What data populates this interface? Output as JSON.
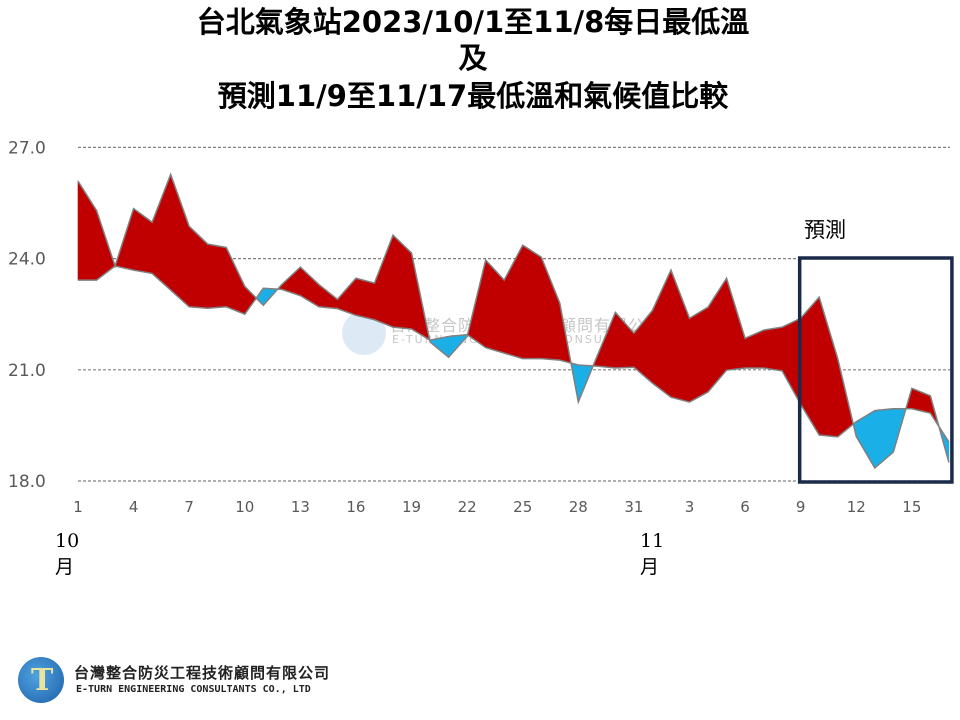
{
  "title": {
    "line1": "台北氣象站2023/10/1至11/8每日最低溫",
    "line2": "及",
    "line3": "預測11/9至11/17最低溫和氣候值比較"
  },
  "forecast_label": "預測",
  "company": {
    "name_zh": "台灣整合防災工程技術顧問有限公司",
    "name_en": "E-TURN ENGINEERING CONSULTANTS CO., LTD"
  },
  "colors": {
    "above_normal": "#c00000",
    "below_normal": "#1aafe6",
    "outline": "#808080",
    "forecast_box": "#1b2a4a"
  },
  "chart_data": {
    "type": "area",
    "title": "台北氣象站2023/10/1至11/8每日最低溫 及 預測11/9至11/17最低溫和氣候值比較",
    "xlabel": "",
    "ylabel": "",
    "ylim": [
      18.0,
      27.0
    ],
    "yticks": [
      "18.0",
      "21.0",
      "24.0",
      "27.0"
    ],
    "grid": true,
    "x": [
      "10/1",
      "10/2",
      "10/3",
      "10/4",
      "10/5",
      "10/6",
      "10/7",
      "10/8",
      "10/9",
      "10/10",
      "10/11",
      "10/12",
      "10/13",
      "10/14",
      "10/15",
      "10/16",
      "10/17",
      "10/18",
      "10/19",
      "10/20",
      "10/21",
      "10/22",
      "10/23",
      "10/24",
      "10/25",
      "10/26",
      "10/27",
      "10/28",
      "10/29",
      "10/30",
      "10/31",
      "11/1",
      "11/2",
      "11/3",
      "11/4",
      "11/5",
      "11/6",
      "11/7",
      "11/8",
      "11/9",
      "11/10",
      "11/11",
      "11/12",
      "11/13",
      "11/14",
      "11/15",
      "11/16",
      "11/17"
    ],
    "xtick_labels": [
      "1",
      "4",
      "7",
      "10",
      "13",
      "16",
      "19",
      "22",
      "25",
      "28",
      "31",
      "3",
      "6",
      "9",
      "12",
      "15"
    ],
    "month_labels": [
      {
        "month": "10",
        "unit": "月"
      },
      {
        "month": "11",
        "unit": "月"
      }
    ],
    "forecast_range": [
      "11/9",
      "11/17"
    ],
    "series": [
      {
        "values": [
          26.09,
          25.3,
          23.8,
          25.35,
          24.98,
          26.27,
          24.87,
          24.39,
          24.3,
          23.25,
          22.74,
          23.3,
          23.77,
          23.3,
          22.9,
          23.47,
          23.34,
          24.63,
          24.15,
          21.75,
          21.34,
          21.9,
          23.96,
          23.42,
          24.36,
          24.04,
          22.8,
          20.13,
          21.35,
          22.55,
          21.99,
          22.6,
          23.69,
          22.39,
          22.69,
          23.47,
          21.85,
          22.07,
          22.15,
          22.39,
          22.96,
          21.3,
          19.2,
          18.35,
          18.78,
          20.5,
          20.3,
          18.5
        ]
      },
      {
        "values": [
          23.42,
          23.42,
          23.8,
          23.69,
          23.6,
          23.15,
          22.7,
          22.66,
          22.7,
          22.5,
          23.2,
          23.17,
          23.0,
          22.7,
          22.65,
          22.47,
          22.35,
          22.15,
          22.1,
          21.8,
          21.9,
          21.95,
          21.6,
          21.45,
          21.3,
          21.3,
          21.26,
          21.13,
          21.1,
          21.05,
          21.07,
          20.64,
          20.26,
          20.13,
          20.4,
          20.99,
          21.05,
          21.05,
          20.97,
          20.07,
          19.24,
          19.19,
          19.6,
          19.9,
          19.95,
          19.95,
          19.83,
          19.05
        ]
      }
    ]
  }
}
